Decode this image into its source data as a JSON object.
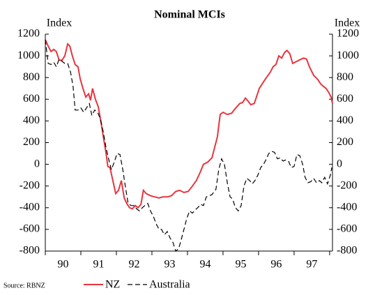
{
  "chart_data": {
    "type": "line",
    "title": "Nominal MCIs",
    "ylabel": "Index",
    "y2label": "Index",
    "source": "Source: RBNZ",
    "xlim": [
      1990,
      1998.08
    ],
    "xticks": [
      {
        "value": 1990.5,
        "label": "90"
      },
      {
        "value": 1991.5,
        "label": "91"
      },
      {
        "value": 1992.5,
        "label": "92"
      },
      {
        "value": 1993.5,
        "label": "93"
      },
      {
        "value": 1994.5,
        "label": "94"
      },
      {
        "value": 1995.5,
        "label": "95"
      },
      {
        "value": 1996.5,
        "label": "96"
      },
      {
        "value": 1997.5,
        "label": "97"
      }
    ],
    "xtick_marks": [
      1990,
      1991,
      1992,
      1993,
      1994,
      1995,
      1996,
      1997,
      1998
    ],
    "ylim": [
      -800,
      1200
    ],
    "yticks": [
      -800,
      -600,
      -400,
      -200,
      0,
      200,
      400,
      600,
      800,
      1000,
      1200
    ],
    "y2lim": [
      -800,
      1200
    ],
    "y2ticks": [
      -800,
      -600,
      -400,
      -200,
      0,
      200,
      400,
      600,
      800,
      1000,
      1200
    ],
    "series": [
      {
        "name": "NZ",
        "color": "#e8343f",
        "dash": false,
        "x": [
          1990.0,
          1990.08,
          1990.16,
          1990.24,
          1990.31,
          1990.39,
          1990.47,
          1990.55,
          1990.63,
          1990.69,
          1990.76,
          1990.84,
          1990.92,
          1990.98,
          1991.06,
          1991.14,
          1991.22,
          1991.27,
          1991.33,
          1991.41,
          1991.49,
          1991.57,
          1991.65,
          1991.71,
          1991.76,
          1991.82,
          1991.9,
          1991.98,
          1992.06,
          1992.14,
          1992.22,
          1992.29,
          1992.37,
          1992.45,
          1992.53,
          1992.61,
          1992.69,
          1992.76,
          1992.84,
          1992.96,
          1993.08,
          1993.2,
          1993.31,
          1993.43,
          1993.55,
          1993.67,
          1993.78,
          1993.9,
          1994.02,
          1994.14,
          1994.25,
          1994.35,
          1994.45,
          1994.57,
          1994.69,
          1994.76,
          1994.84,
          1994.92,
          1995.0,
          1995.12,
          1995.24,
          1995.31,
          1995.39,
          1995.47,
          1995.55,
          1995.63,
          1995.71,
          1995.78,
          1995.88,
          1996.02,
          1996.18,
          1996.33,
          1996.41,
          1996.49,
          1996.57,
          1996.65,
          1996.73,
          1996.8,
          1996.88,
          1996.96,
          1997.08,
          1997.2,
          1997.27,
          1997.35,
          1997.43,
          1997.55,
          1997.67,
          1997.75,
          1997.82,
          1997.9,
          1997.98,
          1998.04,
          1998.08
        ],
        "values": [
          1150,
          1090,
          1040,
          1060,
          1040,
          960,
          960,
          1000,
          1110,
          1090,
          1000,
          920,
          900,
          790,
          700,
          620,
          650,
          590,
          700,
          600,
          530,
          380,
          220,
          100,
          -20,
          -30,
          -150,
          -270,
          -240,
          -150,
          -310,
          -360,
          -400,
          -410,
          -380,
          -400,
          -370,
          -240,
          -270,
          -290,
          -300,
          -310,
          -300,
          -300,
          -290,
          -250,
          -240,
          -260,
          -250,
          -200,
          -150,
          -80,
          0,
          20,
          60,
          150,
          250,
          460,
          480,
          460,
          470,
          500,
          530,
          560,
          570,
          610,
          580,
          550,
          560,
          700,
          780,
          850,
          900,
          920,
          1000,
          980,
          1030,
          1050,
          1020,
          930,
          950,
          970,
          980,
          970,
          900,
          820,
          780,
          740,
          720,
          700,
          660,
          620,
          560
        ]
      },
      {
        "name": "Australia",
        "color": "#000000",
        "dash": true,
        "x": [
          1990.0,
          1990.08,
          1990.16,
          1990.24,
          1990.31,
          1990.39,
          1990.47,
          1990.55,
          1990.63,
          1990.71,
          1990.78,
          1990.84,
          1990.92,
          1991.0,
          1991.08,
          1991.16,
          1991.24,
          1991.31,
          1991.39,
          1991.47,
          1991.55,
          1991.63,
          1991.71,
          1991.78,
          1991.86,
          1991.94,
          1992.02,
          1992.1,
          1992.18,
          1992.25,
          1992.33,
          1992.41,
          1992.49,
          1992.57,
          1992.65,
          1992.73,
          1992.8,
          1992.88,
          1992.96,
          1993.04,
          1993.12,
          1993.2,
          1993.27,
          1993.35,
          1993.43,
          1993.51,
          1993.59,
          1993.67,
          1993.75,
          1993.82,
          1993.9,
          1993.98,
          1994.06,
          1994.14,
          1994.22,
          1994.29,
          1994.37,
          1994.45,
          1994.53,
          1994.69,
          1994.8,
          1994.88,
          1994.96,
          1995.04,
          1995.12,
          1995.2,
          1995.27,
          1995.35,
          1995.43,
          1995.51,
          1995.59,
          1995.67,
          1995.75,
          1995.82,
          1995.9,
          1995.98,
          1996.06,
          1996.14,
          1996.22,
          1996.29,
          1996.37,
          1996.45,
          1996.53,
          1996.61,
          1996.69,
          1996.76,
          1996.84,
          1996.92,
          1997.0,
          1997.08,
          1997.16,
          1997.24,
          1997.31,
          1997.39,
          1997.47,
          1997.55,
          1997.63,
          1997.71,
          1997.78,
          1997.86,
          1997.94,
          1998.02,
          1998.06
        ],
        "values": [
          1150,
          930,
          920,
          940,
          900,
          970,
          950,
          930,
          930,
          850,
          720,
          500,
          500,
          520,
          480,
          520,
          560,
          450,
          500,
          480,
          420,
          300,
          150,
          50,
          -50,
          20,
          100,
          90,
          -50,
          -200,
          -360,
          -380,
          -380,
          -410,
          -430,
          -400,
          -380,
          -360,
          -430,
          -480,
          -550,
          -600,
          -600,
          -650,
          -620,
          -680,
          -720,
          -800,
          -780,
          -700,
          -600,
          -500,
          -430,
          -450,
          -420,
          -400,
          -370,
          -380,
          -300,
          -280,
          -230,
          -50,
          50,
          0,
          -170,
          -300,
          -320,
          -400,
          -430,
          -380,
          -200,
          -130,
          -150,
          -180,
          -150,
          -100,
          -30,
          0,
          50,
          100,
          120,
          110,
          50,
          60,
          30,
          40,
          30,
          -30,
          -20,
          90,
          80,
          0,
          -120,
          -170,
          -160,
          -130,
          -170,
          -150,
          -170,
          -120,
          -180,
          -100,
          -30
        ]
      }
    ]
  }
}
